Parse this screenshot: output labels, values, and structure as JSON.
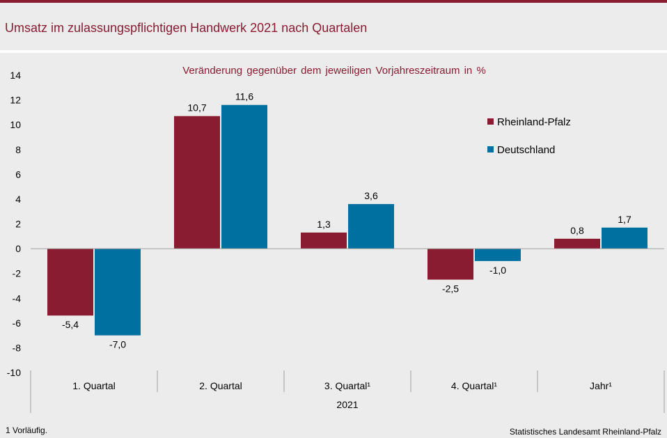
{
  "header": {
    "title": "Umsatz im zulassungspflichtigen Handwerk 2021 nach Quartalen"
  },
  "footer": {
    "footnote": "1 Vorläufig.",
    "source": "Statistisches Landesamt Rheinland-Pfalz"
  },
  "colors": {
    "accent": "#8a1c32",
    "rlp": "#8a1c32",
    "de": "#0070a0"
  },
  "chart_data": {
    "type": "bar",
    "title": "Umsatz im zulassungspflichtigen Handwerk 2021 nach Quartalen",
    "subtitle": "Veränderung gegenüber dem jeweiligen Vorjahreszeitraum in %",
    "categories": [
      "1. Quartal",
      "2. Quartal",
      "3. Quartal¹",
      "4. Quartal¹",
      "Jahr¹"
    ],
    "group_label": "2021",
    "series": [
      {
        "name": "Rheinland-Pfalz",
        "color": "#8a1c32",
        "values": [
          -5.4,
          10.7,
          1.3,
          -2.5,
          0.8
        ],
        "labels": [
          "-5,4",
          "10,7",
          "1,3",
          "-2,5",
          "0,8"
        ]
      },
      {
        "name": "Deutschland",
        "color": "#0070a0",
        "values": [
          -7.0,
          11.6,
          3.6,
          -1.0,
          1.7
        ],
        "labels": [
          "-7,0",
          "11,6",
          "3,6",
          "-1,0",
          "1,7"
        ]
      }
    ],
    "yticks": [
      "14",
      "12",
      "10",
      "8",
      "6",
      "4",
      "2",
      "0",
      "-2",
      "-4",
      "-6",
      "-8",
      "-10"
    ],
    "ylim": [
      -10,
      14
    ],
    "grid": false,
    "legend_position": "top-right"
  }
}
